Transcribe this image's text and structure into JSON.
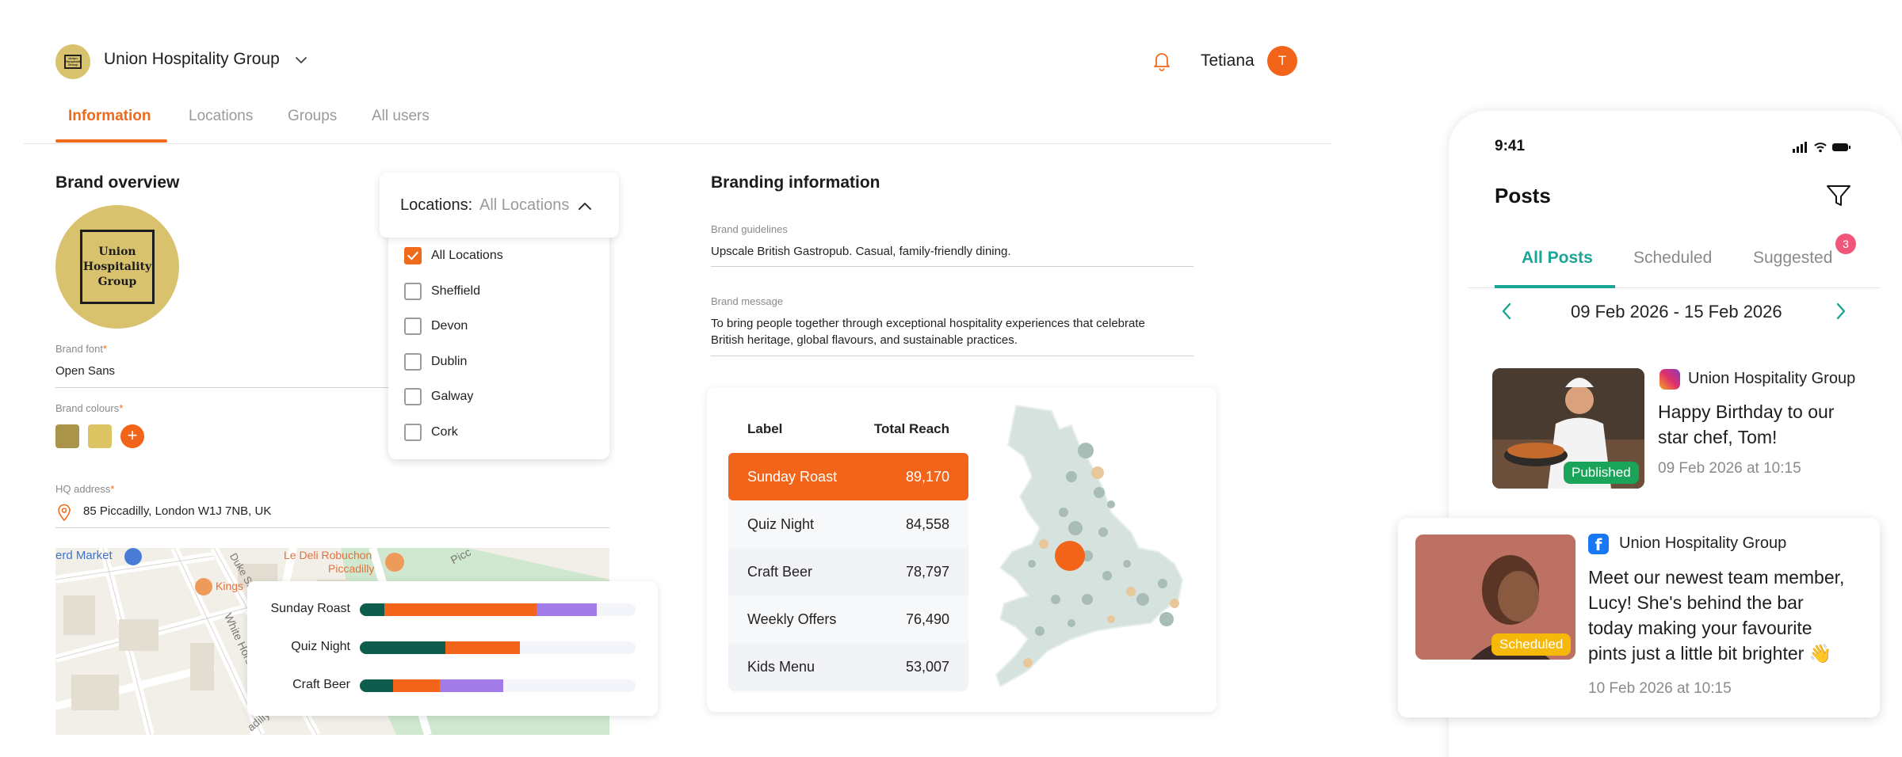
{
  "header": {
    "org_name": "Union Hospitality Group",
    "user_name": "Tetiana",
    "user_initial": "T",
    "logo_text": "Union Hospitality Group"
  },
  "tabs": [
    {
      "label": "Information",
      "active": true
    },
    {
      "label": "Locations",
      "active": false
    },
    {
      "label": "Groups",
      "active": false
    },
    {
      "label": "All users",
      "active": false
    }
  ],
  "brand_overview": {
    "title": "Brand overview",
    "logo_lines": [
      "Union",
      "Hospitality",
      "Group"
    ],
    "font_label": "Brand font",
    "font_value": "Open Sans",
    "colours_label": "Brand colours",
    "colours": [
      "#a99449",
      "#dcc462"
    ],
    "add_colour_label": "+",
    "hq_label": "HQ address",
    "hq_value": "85 Piccadilly, London W1J 7NB, UK",
    "required_mark": "*"
  },
  "map_labels": {
    "market": "erd Market",
    "restaurant1": "Le Deli Robuchon",
    "restaurant2": "Piccadilly",
    "kings": "Kings",
    "street1": "Duke St",
    "street2": "White Horse",
    "street3": "Picc",
    "street4": "adilly"
  },
  "bar_chart": {
    "rows": [
      {
        "label": "Sunday Roast",
        "segments": [
          0.09,
          0.55,
          0.22
        ]
      },
      {
        "label": "Quiz Night",
        "segments": [
          0.31,
          0.27,
          0.0
        ]
      },
      {
        "label": "Craft Beer",
        "segments": [
          0.12,
          0.17,
          0.23
        ]
      }
    ],
    "colors": [
      "#0d5c4c",
      "#f26419",
      "#a17be8"
    ]
  },
  "locations_filter": {
    "label": "Locations:",
    "value": "All Locations",
    "options": [
      {
        "label": "All Locations",
        "checked": true
      },
      {
        "label": "Sheffield",
        "checked": false
      },
      {
        "label": "Devon",
        "checked": false
      },
      {
        "label": "Dublin",
        "checked": false
      },
      {
        "label": "Galway",
        "checked": false
      },
      {
        "label": "Cork",
        "checked": false
      }
    ]
  },
  "branding": {
    "title": "Branding information",
    "guidelines_label": "Brand guidelines",
    "guidelines_value": "Upscale British Gastropub. Casual, family-friendly dining.",
    "message_label": "Brand message",
    "message_line1": "To bring people together through exceptional hospitality experiences that celebrate",
    "message_line2": "British heritage, global flavours, and sustainable practices."
  },
  "reach_table": {
    "col_label": "Label",
    "col_reach": "Total Reach",
    "rows": [
      {
        "label": "Sunday Roast",
        "reach": "89,170",
        "active": true
      },
      {
        "label": "Quiz Night",
        "reach": "84,558",
        "active": false
      },
      {
        "label": "Craft Beer",
        "reach": "78,797",
        "active": false
      },
      {
        "label": "Weekly Offers",
        "reach": "76,490",
        "active": false
      },
      {
        "label": "Kids Menu",
        "reach": "53,007",
        "active": false
      }
    ]
  },
  "phone": {
    "time": "9:41",
    "title": "Posts",
    "tabs": [
      {
        "label": "All Posts",
        "active": true
      },
      {
        "label": "Scheduled",
        "active": false
      },
      {
        "label": "Suggested",
        "active": false,
        "badge": "3"
      }
    ],
    "date_range": "09 Feb 2026 - 15 Feb 2026",
    "posts": [
      {
        "network": "instagram",
        "org": "Union Hospitality Group",
        "text_lines": [
          "Happy Birthday to our",
          "star chef, Tom!"
        ],
        "date": "09 Feb 2026 at 10:15",
        "status": "Published"
      },
      {
        "network": "facebook",
        "org": "Union Hospitality Group",
        "text_lines": [
          "Meet our newest team member,",
          "Lucy! She's behind the bar",
          "today making your favourite",
          "pints just a little bit brighter 👋"
        ],
        "date": "10 Feb 2026 at 10:15",
        "status": "Scheduled"
      }
    ]
  },
  "colors": {
    "accent": "#ef6a1a",
    "teal": "#1aa597",
    "published": "#1aa45a",
    "scheduled": "#f6b90a"
  }
}
